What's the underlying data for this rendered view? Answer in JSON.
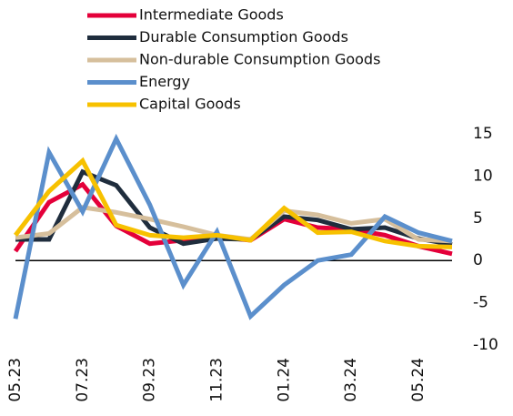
{
  "chart_data": {
    "type": "line",
    "categories": [
      "05.23",
      null,
      "07.23",
      null,
      "09.23",
      null,
      "11.23",
      null,
      "01.24",
      null,
      "03.24",
      null,
      "05.24",
      null
    ],
    "series": [
      {
        "name": "Intermediate  Goods",
        "color": "#e4003a",
        "values": [
          1.1,
          6.9,
          9.0,
          4.1,
          2.0,
          2.4,
          2.8,
          2.4,
          4.9,
          3.9,
          3.7,
          3.0,
          1.7,
          0.8
        ]
      },
      {
        "name": "Durable Consumption Goods",
        "color": "#1f2d3d",
        "values": [
          2.5,
          2.5,
          10.5,
          8.9,
          3.9,
          2.0,
          2.6,
          2.5,
          5.2,
          4.8,
          3.7,
          3.9,
          2.6,
          1.9
        ]
      },
      {
        "name": "Non-durable Consumption Goods",
        "color": "#d6bf9c",
        "values": [
          2.7,
          3.2,
          6.3,
          5.7,
          4.9,
          4.0,
          3.0,
          2.5,
          5.9,
          5.4,
          4.4,
          4.9,
          2.5,
          2.3
        ]
      },
      {
        "name": "Energy",
        "color": "#5b8fcc",
        "values": [
          -6.9,
          12.8,
          5.8,
          14.4,
          6.6,
          -2.9,
          3.4,
          -6.6,
          -2.9,
          0,
          0.7,
          5.2,
          3.3,
          2.3
        ]
      },
      {
        "name": "Capital Goods",
        "color": "#f7c100",
        "values": [
          3.0,
          8.2,
          11.8,
          4.2,
          3.0,
          2.7,
          3.0,
          2.4,
          6.2,
          3.3,
          3.4,
          2.3,
          1.7,
          1.6
        ]
      }
    ],
    "ylim": [
      -10,
      15
    ],
    "yticks": [
      -10,
      -5,
      0,
      5,
      10,
      15
    ],
    "reference_line": 0,
    "legend": "top"
  }
}
